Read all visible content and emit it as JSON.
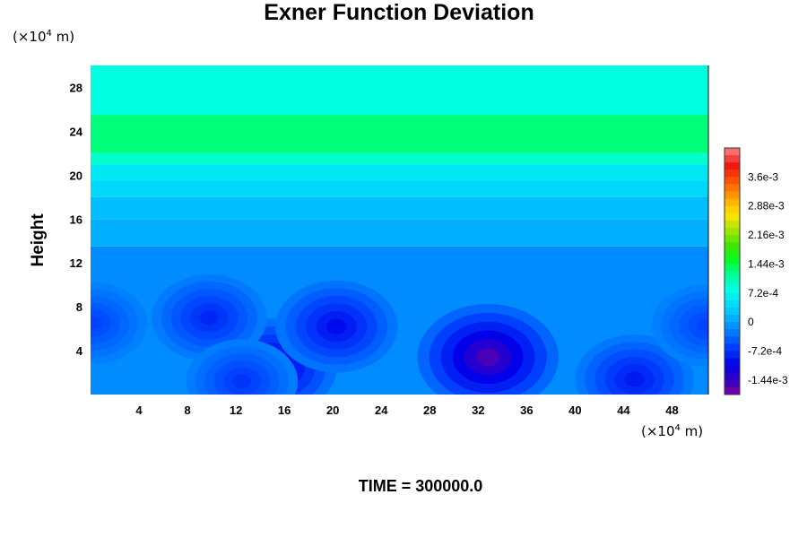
{
  "chart_data": {
    "type": "heatmap",
    "title": "Exner Function Deviation",
    "ylabel": "Height",
    "x_unit_label": {
      "pre": "(×10",
      "exp": "4",
      "post": " m)"
    },
    "y_unit_label": {
      "pre": "(×10",
      "exp": "4",
      "post": " m)"
    },
    "footer": "TIME = 300000.0",
    "x_ticks": [
      "4",
      "8",
      "12",
      "16",
      "20",
      "24",
      "28",
      "32",
      "36",
      "40",
      "44",
      "48"
    ],
    "x_tick_values": [
      4,
      8,
      12,
      16,
      20,
      24,
      28,
      32,
      36,
      40,
      44,
      48
    ],
    "y_ticks": [
      "4",
      "8",
      "12",
      "16",
      "20",
      "24",
      "28"
    ],
    "y_tick_values": [
      4,
      8,
      12,
      16,
      20,
      24,
      28
    ],
    "xlim": [
      0,
      51
    ],
    "ylim": [
      0,
      30
    ],
    "colorbar": {
      "range": [
        -0.0018,
        0.00432
      ],
      "tick_labels": [
        "3.6e-3",
        "2.88e-3",
        "2.16e-3",
        "1.44e-3",
        "7.2e-4",
        "0",
        "-7.2e-4",
        "-1.44e-3"
      ],
      "tick_values": [
        0.0036,
        0.00288,
        0.00216,
        0.00144,
        0.00072,
        0,
        -0.00072,
        -0.00144
      ]
    },
    "field": {
      "layers": [
        {
          "y_low": 25.5,
          "y_high": 30,
          "value": 0.0008
        },
        {
          "y_low": 22,
          "y_high": 25.5,
          "value": 0.00125
        },
        {
          "y_low": 21,
          "y_high": 22,
          "value": 0.0009
        },
        {
          "y_low": 19.5,
          "y_high": 21,
          "value": 0.00055
        },
        {
          "y_low": 18,
          "y_high": 19.5,
          "value": 0.0004
        },
        {
          "y_low": 16,
          "y_high": 18,
          "value": 0.0002
        },
        {
          "y_low": 13.5,
          "y_high": 16,
          "value": 0.0001
        },
        {
          "y_low": 0,
          "y_high": 13.5,
          "value": -0.00015
        }
      ],
      "minima": [
        {
          "x": 32.8,
          "y": 3.4,
          "value": -0.00155
        },
        {
          "x": 15,
          "y": 2.5,
          "value": -0.0012
        },
        {
          "x": 20.3,
          "y": 6.2,
          "value": -0.001
        },
        {
          "x": 9.8,
          "y": 7.0,
          "value": -0.0008
        },
        {
          "x": 44.9,
          "y": 1.4,
          "value": -0.0009
        },
        {
          "x": 12.5,
          "y": 1.2,
          "value": -0.0007
        },
        {
          "x": 0.2,
          "y": 6.5,
          "value": -0.0006
        },
        {
          "x": 50.8,
          "y": 6.3,
          "value": -0.0006
        }
      ]
    }
  }
}
